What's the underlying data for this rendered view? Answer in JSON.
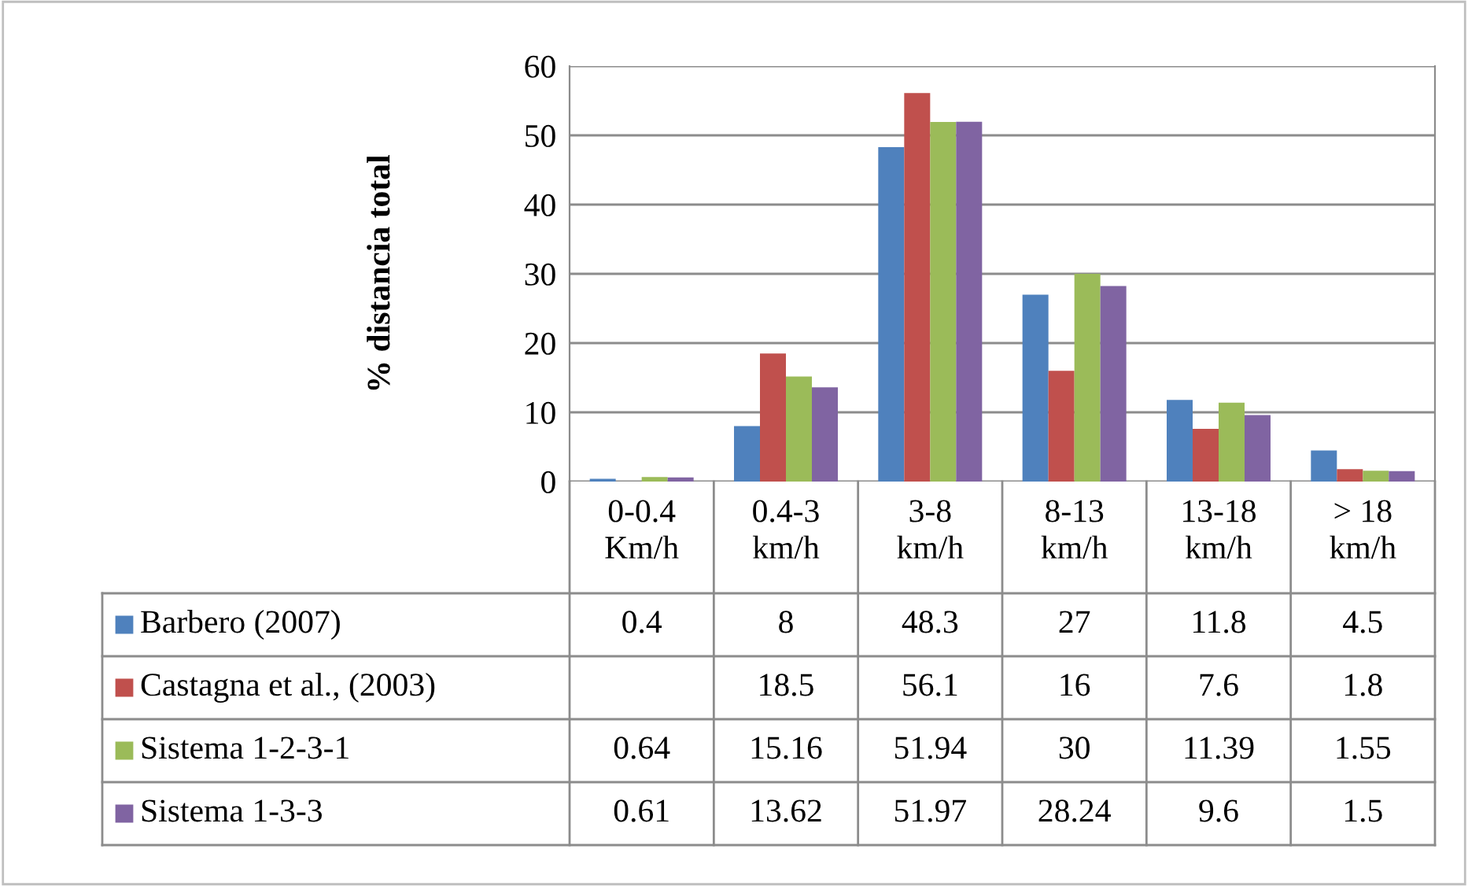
{
  "chart_data": {
    "type": "bar",
    "ylabel": "% distancia total",
    "categories": [
      "0-0.4\nKm/h",
      "0.4-3\nkm/h",
      "3-8\nkm/h",
      "8-13\nkm/h",
      "13-18\nkm/h",
      "> 18\nkm/h"
    ],
    "series": [
      {
        "name": "Barbero (2007)",
        "color": "#4f81bd",
        "values": [
          0.4,
          8,
          48.3,
          27,
          11.8,
          4.5
        ]
      },
      {
        "name": "Castagna et al., (2003)",
        "color": "#c0504d",
        "values": [
          null,
          18.5,
          56.1,
          16,
          7.6,
          1.8
        ]
      },
      {
        "name": "Sistema 1-2-3-1",
        "color": "#9bbb59",
        "values": [
          0.64,
          15.16,
          51.94,
          30,
          11.39,
          1.55
        ]
      },
      {
        "name": "Sistema 1-3-3",
        "color": "#8064a2",
        "values": [
          0.61,
          13.62,
          51.97,
          28.24,
          9.6,
          1.5
        ]
      }
    ],
    "ylim": [
      0,
      60
    ],
    "yticks": [
      0,
      10,
      20,
      30,
      40,
      50,
      60
    ],
    "grid": "y",
    "legend": "bottom",
    "data_labels": true
  }
}
